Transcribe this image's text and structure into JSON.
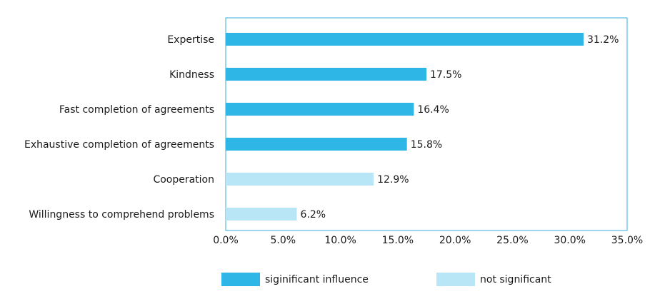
{
  "chart_data": {
    "type": "bar",
    "orientation": "horizontal",
    "categories": [
      "Expertise",
      "Kindness",
      "Fast completion of agreements",
      "Exhaustive completion of agreements",
      "Cooperation",
      "Willingness to comprehend problems"
    ],
    "values": [
      31.2,
      17.5,
      16.4,
      15.8,
      12.9,
      6.2
    ],
    "value_labels": [
      "31.2%",
      "17.5%",
      "16.4%",
      "15.8%",
      "12.9%",
      "6.2%"
    ],
    "bar_groups": [
      "significant",
      "significant",
      "significant",
      "significant",
      "not_significant",
      "not_significant"
    ],
    "xlim": [
      0,
      35
    ],
    "xticks": [
      0,
      5,
      10,
      15,
      20,
      25,
      30,
      35
    ],
    "xtick_labels": [
      "0.0%",
      "5.0%",
      "10.0%",
      "15.0%",
      "20.0%",
      "25.0%",
      "30.0%",
      "35.0%"
    ],
    "grid": false,
    "legend_position": "bottom",
    "legend": [
      {
        "key": "significant",
        "label": "siginificant influence",
        "color": "#2eb7e6"
      },
      {
        "key": "not_significant",
        "label": "not significant",
        "color": "#b9e6f6"
      }
    ],
    "frame_color": "#3aaed8"
  }
}
